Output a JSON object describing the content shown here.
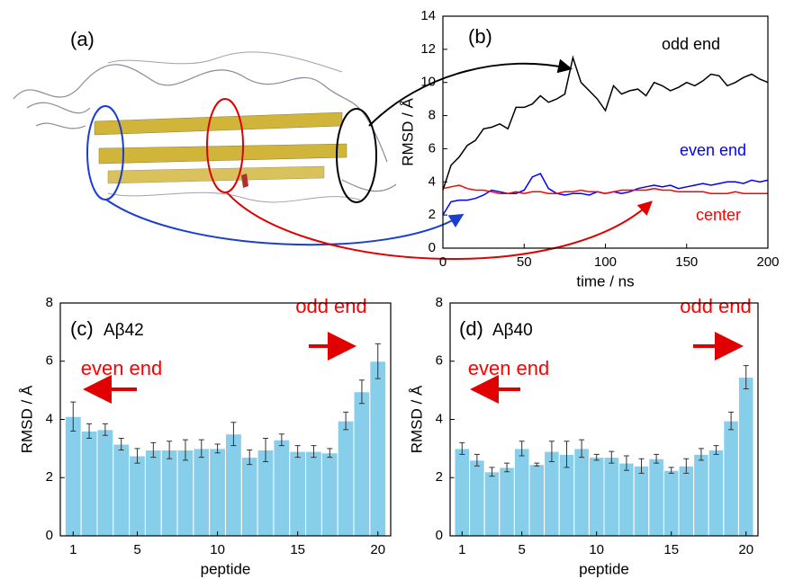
{
  "panel_a": {
    "panel_label": "(a)"
  },
  "chart_data": [
    {
      "type": "line",
      "panel_label": "(b)",
      "xlabel": "time / ns",
      "ylabel": "RMSD / Å",
      "xlim": [
        0,
        200
      ],
      "xticks": [
        0,
        50,
        100,
        150,
        200
      ],
      "ylim": [
        0,
        14
      ],
      "yticks": [
        0,
        2,
        4,
        6,
        8,
        10,
        12,
        14
      ],
      "x": [
        0,
        5,
        10,
        15,
        20,
        25,
        30,
        35,
        40,
        45,
        50,
        55,
        60,
        65,
        70,
        75,
        80,
        85,
        90,
        95,
        100,
        105,
        110,
        115,
        120,
        125,
        130,
        135,
        140,
        145,
        150,
        155,
        160,
        165,
        170,
        175,
        180,
        185,
        190,
        195,
        200
      ],
      "series": [
        {
          "name": "odd end",
          "color": "#000000",
          "values": [
            3.5,
            5,
            5.5,
            6.2,
            6.5,
            7.2,
            7.3,
            7.5,
            7.2,
            8.5,
            8.5,
            8.7,
            9.2,
            8.8,
            9.0,
            9.3,
            11.5,
            10.0,
            9.5,
            9.0,
            8.3,
            9.8,
            9.3,
            9.5,
            9.6,
            9.2,
            10.0,
            9.8,
            9.5,
            9.7,
            10.0,
            9.8,
            10.1,
            10.5,
            10.4,
            9.8,
            10.0,
            10.3,
            10.5,
            10.2,
            10.0
          ]
        },
        {
          "name": "even end",
          "color": "#0000ff",
          "values": [
            2.0,
            2.8,
            2.9,
            2.9,
            3.0,
            3.2,
            3.5,
            3.4,
            3.3,
            3.3,
            3.5,
            4.3,
            4.5,
            3.6,
            3.3,
            3.2,
            3.3,
            3.3,
            3.2,
            3.4,
            3.3,
            3.4,
            3.3,
            3.4,
            3.6,
            3.7,
            3.8,
            3.7,
            3.8,
            3.6,
            3.7,
            3.8,
            3.9,
            3.8,
            3.9,
            4.0,
            4.0,
            3.9,
            4.1,
            4.0,
            4.1
          ]
        },
        {
          "name": "center",
          "color": "#ff0000",
          "values": [
            3.6,
            3.7,
            3.8,
            3.6,
            3.5,
            3.5,
            3.4,
            3.3,
            3.3,
            3.4,
            3.3,
            3.4,
            3.4,
            3.3,
            3.3,
            3.4,
            3.4,
            3.5,
            3.4,
            3.4,
            3.3,
            3.4,
            3.5,
            3.5,
            3.5,
            3.5,
            3.6,
            3.5,
            3.5,
            3.4,
            3.4,
            3.4,
            3.4,
            3.3,
            3.3,
            3.3,
            3.4,
            3.3,
            3.3,
            3.3,
            3.3
          ]
        }
      ]
    },
    {
      "type": "bar",
      "panel_label": "(c)",
      "peptide_label": "Aβ42",
      "xlabel": "peptide",
      "ylabel": "RMSD / Å",
      "annotations": [
        "odd end",
        "even end"
      ],
      "annotation_color": "#ff0000",
      "color": "#87ceeb",
      "ylim": [
        0,
        8
      ],
      "yticks": [
        0,
        2,
        4,
        6,
        8
      ],
      "categories": [
        1,
        null,
        null,
        null,
        5,
        null,
        null,
        null,
        null,
        10,
        null,
        null,
        null,
        null,
        15,
        null,
        null,
        null,
        null,
        20
      ],
      "values": [
        4.1,
        3.6,
        3.65,
        3.15,
        2.75,
        2.95,
        2.95,
        2.95,
        3.0,
        3.0,
        3.5,
        2.7,
        2.95,
        3.3,
        2.9,
        2.9,
        2.85,
        3.95,
        4.95,
        6.0
      ],
      "errors": [
        0.5,
        0.25,
        0.2,
        0.2,
        0.25,
        0.25,
        0.3,
        0.35,
        0.3,
        0.15,
        0.4,
        0.25,
        0.4,
        0.2,
        0.2,
        0.2,
        0.15,
        0.3,
        0.4,
        0.6
      ]
    },
    {
      "type": "bar",
      "panel_label": "(d)",
      "peptide_label": "Aβ40",
      "xlabel": "peptide",
      "ylabel": "RMSD / Å",
      "annotations": [
        "odd end",
        "even end"
      ],
      "annotation_color": "#ff0000",
      "color": "#87ceeb",
      "ylim": [
        0,
        8
      ],
      "yticks": [
        0,
        2,
        4,
        6,
        8
      ],
      "categories": [
        1,
        null,
        null,
        null,
        5,
        null,
        null,
        null,
        null,
        10,
        null,
        null,
        null,
        null,
        15,
        null,
        null,
        null,
        null,
        20
      ],
      "values": [
        3.0,
        2.6,
        2.2,
        2.35,
        3.0,
        2.45,
        2.9,
        2.8,
        3.0,
        2.7,
        2.7,
        2.5,
        2.4,
        2.65,
        2.25,
        2.4,
        2.8,
        2.95,
        3.95,
        5.45
      ],
      "errors": [
        0.2,
        0.2,
        0.15,
        0.15,
        0.25,
        0.05,
        0.35,
        0.45,
        0.3,
        0.1,
        0.2,
        0.25,
        0.25,
        0.15,
        0.1,
        0.25,
        0.2,
        0.15,
        0.3,
        0.4
      ]
    }
  ]
}
